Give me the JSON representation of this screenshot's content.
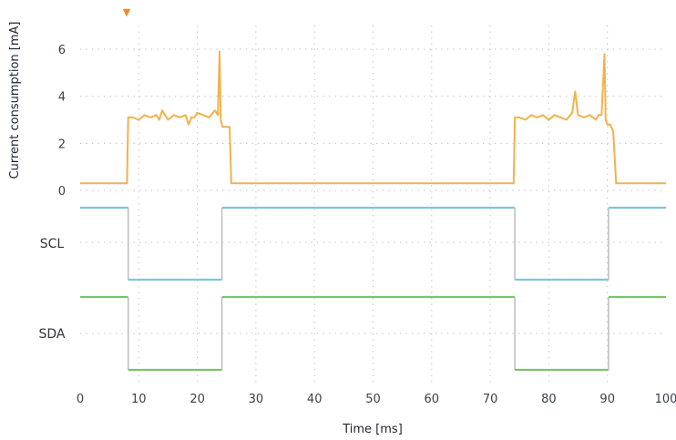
{
  "chart_data": {
    "type": "line",
    "ylabel": "Current consumption [mA]",
    "xlabel": "Time [ms]",
    "xlim": [
      0,
      100
    ],
    "ylim": [
      0,
      6
    ],
    "x_ticks": [
      "0",
      "10",
      "20",
      "30",
      "40",
      "50",
      "60",
      "70",
      "80",
      "90",
      "100"
    ],
    "y_ticks": [
      "0",
      "2",
      "4",
      "6"
    ],
    "channels": [
      "SCL",
      "SDA"
    ],
    "grid": true,
    "trigger_marker": "▼",
    "colors": {
      "current": "#f0b34c",
      "scl": "#7cc6df",
      "sda": "#7cc36a",
      "grid": "#b9bcc4",
      "trigger": "#f08a24",
      "transition": "#bdbdbd"
    },
    "series": [
      {
        "key": "current",
        "x": [
          0,
          8,
          8.2,
          9,
          10,
          11,
          12,
          13,
          13.5,
          14,
          15,
          16,
          17,
          18,
          18.5,
          19,
          19.5,
          20,
          21,
          22,
          23,
          23.5,
          23.8,
          24,
          24.3,
          25,
          25.5,
          25.8,
          26,
          30,
          40,
          50,
          60,
          70,
          74,
          74.2,
          75,
          76,
          77,
          78,
          79,
          80,
          81,
          82,
          83,
          84,
          84.5,
          85,
          86,
          87,
          88,
          88.5,
          89,
          89.5,
          89.7,
          90,
          90.5,
          91,
          91.5,
          92,
          95,
          100
        ],
        "y": [
          0.3,
          0.3,
          3.1,
          3.1,
          3.0,
          3.2,
          3.1,
          3.2,
          3.0,
          3.4,
          3.0,
          3.2,
          3.1,
          3.2,
          2.8,
          3.1,
          3.1,
          3.3,
          3.2,
          3.1,
          3.4,
          3.2,
          5.9,
          3.0,
          2.7,
          2.7,
          2.7,
          0.3,
          0.3,
          0.3,
          0.3,
          0.3,
          0.3,
          0.3,
          0.3,
          3.1,
          3.1,
          3.0,
          3.2,
          3.1,
          3.2,
          3.0,
          3.2,
          3.1,
          3.0,
          3.3,
          4.2,
          3.2,
          3.1,
          3.2,
          3.0,
          3.2,
          3.2,
          5.8,
          3.0,
          2.8,
          2.8,
          2.5,
          0.3,
          0.3,
          0.3,
          0.3
        ]
      },
      {
        "key": "scl",
        "levels": [
          [
            0,
            8.2,
            1
          ],
          [
            8.2,
            24.2,
            0
          ],
          [
            24.2,
            74.2,
            1
          ],
          [
            74.2,
            90.2,
            0
          ],
          [
            90.2,
            100,
            1
          ]
        ]
      },
      {
        "key": "sda",
        "levels": [
          [
            0,
            8.2,
            1
          ],
          [
            8.2,
            24.2,
            0
          ],
          [
            24.2,
            74.2,
            1
          ],
          [
            74.2,
            90.2,
            0
          ],
          [
            90.2,
            100,
            1
          ]
        ]
      }
    ]
  }
}
